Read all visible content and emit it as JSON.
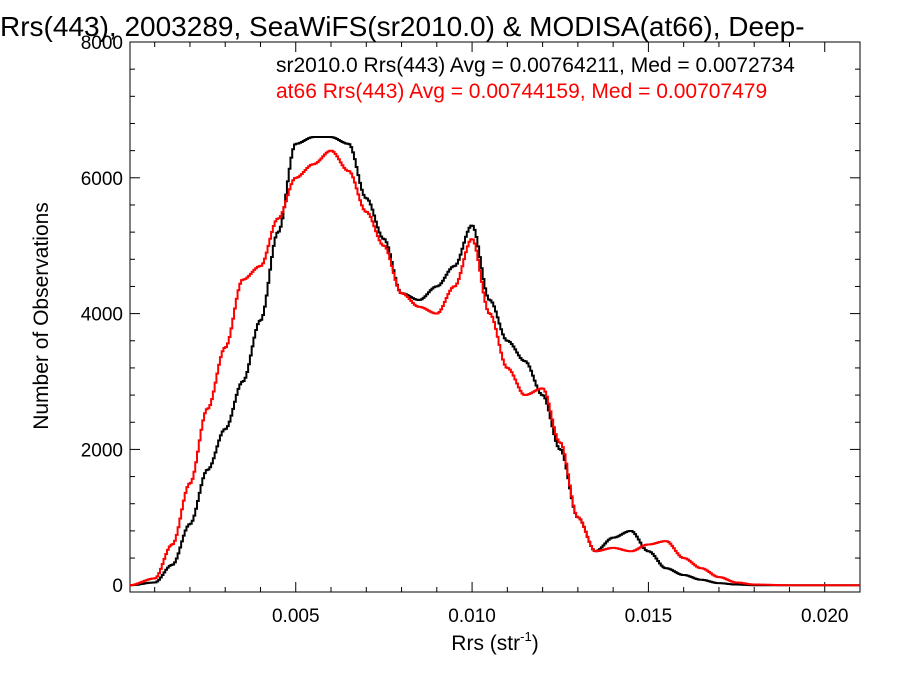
{
  "chart_data": {
    "type": "line",
    "title": "Rrs(443), 2003289, SeaWiFS(sr2010.0) & MODISA(at66), Deep-",
    "xlabel": "Rrs (str",
    "xlabel_sup": "-1",
    "xlabel_end": ")",
    "ylabel": "Number of Observations",
    "xlim": [
      0.0003,
      0.021
    ],
    "ylim": [
      -100,
      8000
    ],
    "xticks": [
      0.005,
      0.01,
      0.015,
      0.02
    ],
    "xtick_labels": [
      "0.005",
      "0.010",
      "0.015",
      "0.020"
    ],
    "yticks": [
      0,
      2000,
      4000,
      6000,
      8000
    ],
    "ytick_labels": [
      "0",
      "2000",
      "4000",
      "6000",
      "8000"
    ],
    "step": true,
    "series": [
      {
        "name": "sr2010.0 Rrs(443) Avg = 0.00764211, Med = 0.0072734",
        "color": "#000000",
        "x": [
          0.0003,
          0.001,
          0.0015,
          0.002,
          0.0025,
          0.003,
          0.0035,
          0.004,
          0.0045,
          0.005,
          0.0055,
          0.006,
          0.0065,
          0.007,
          0.0075,
          0.008,
          0.0085,
          0.009,
          0.0095,
          0.01,
          0.0105,
          0.011,
          0.0115,
          0.012,
          0.0125,
          0.013,
          0.0135,
          0.014,
          0.0145,
          0.015,
          0.0155,
          0.016,
          0.0165,
          0.017,
          0.0175,
          0.018,
          0.019,
          0.02,
          0.021
        ],
        "y": [
          0,
          40,
          300,
          900,
          1700,
          2300,
          3000,
          3900,
          5200,
          6500,
          6600,
          6600,
          6500,
          5700,
          5100,
          4300,
          4200,
          4400,
          4700,
          5300,
          4200,
          3600,
          3300,
          2800,
          2000,
          1000,
          500,
          700,
          800,
          500,
          250,
          150,
          80,
          30,
          10,
          0,
          0,
          0,
          0
        ]
      },
      {
        "name": "at66 Rrs(443) Avg = 0.00744159, Med = 0.00707479",
        "color": "#ff0000",
        "x": [
          0.0003,
          0.001,
          0.0015,
          0.002,
          0.0025,
          0.003,
          0.0035,
          0.004,
          0.0045,
          0.005,
          0.0055,
          0.006,
          0.0065,
          0.007,
          0.0075,
          0.008,
          0.0085,
          0.009,
          0.0095,
          0.01,
          0.0105,
          0.011,
          0.0115,
          0.012,
          0.0125,
          0.013,
          0.0135,
          0.014,
          0.0145,
          0.015,
          0.0155,
          0.016,
          0.0165,
          0.017,
          0.0175,
          0.018,
          0.019,
          0.02,
          0.021
        ],
        "y": [
          0,
          100,
          600,
          1500,
          2600,
          3500,
          4500,
          4700,
          5400,
          6000,
          6200,
          6400,
          6100,
          5500,
          5000,
          4300,
          4100,
          4000,
          4400,
          5100,
          4000,
          3200,
          2800,
          2900,
          2100,
          1000,
          500,
          550,
          500,
          600,
          650,
          400,
          250,
          120,
          40,
          10,
          0,
          0,
          0
        ]
      }
    ]
  }
}
